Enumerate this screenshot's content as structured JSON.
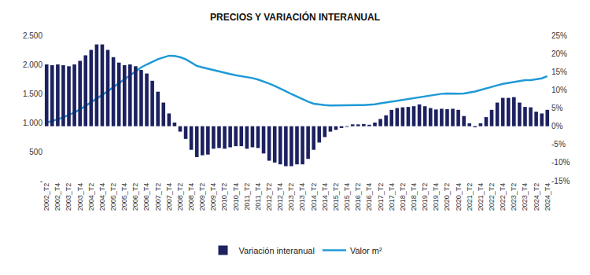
{
  "chart_data": {
    "type": "bar",
    "title": "PRECIOS Y VARIACIÓN INTERANUAL",
    "categories": [
      "2002_T2",
      null,
      "2002_T4",
      null,
      "2003_T2",
      null,
      "2003_T4",
      null,
      "2004_T2",
      null,
      "2004_T4",
      null,
      "2005_T2",
      null,
      "2005_T4",
      null,
      "2006_T2",
      null,
      "2006_T4",
      null,
      "2007_T2",
      null,
      "2007_T4",
      null,
      "2008_T2",
      null,
      "2008_T4",
      null,
      "2009_T2",
      null,
      "2009_T4",
      null,
      "2010_T2",
      null,
      "2010_T4",
      null,
      "2011_T2",
      null,
      "2011_T4",
      null,
      "2012_T2",
      null,
      "2012_T4",
      null,
      "2013_T2",
      null,
      "2013_T4",
      null,
      "2014_T2",
      null,
      "2014_T4",
      null,
      "2015_T2",
      null,
      "2015_T4",
      null,
      "2016_T2",
      null,
      "2016_T4",
      null,
      "2017_T2",
      null,
      "2017_T4",
      null,
      "2018_T2",
      null,
      "2018_T4",
      null,
      "2019_T2",
      null,
      "2019_T4",
      null,
      "2020_T2",
      null,
      "2020_T4",
      null,
      "2021_T2",
      null,
      "2021_T4",
      null,
      "2022_T2",
      null,
      "2022_T4",
      null,
      "2023_T2",
      null,
      "2023_T4",
      null,
      "2024_T2",
      null,
      "2024_T4"
    ],
    "series": [
      {
        "name": "Variación interanual",
        "type": "bar",
        "color": "#1c2160",
        "axis": "y2",
        "values": [
          17.0,
          16.8,
          17.0,
          16.8,
          16.5,
          17.0,
          18.0,
          19.5,
          21.0,
          22.5,
          22.5,
          21.0,
          19.0,
          17.5,
          16.8,
          17.0,
          16.5,
          15.5,
          14.5,
          12.5,
          9.5,
          6.5,
          3.5,
          1.0,
          -1.5,
          -3.5,
          -6.5,
          -8.5,
          -8.0,
          -7.8,
          -6.2,
          -6.0,
          -6.2,
          -5.8,
          -5.5,
          -5.5,
          -6.2,
          -5.8,
          -6.0,
          -7.5,
          -9.5,
          -10.0,
          -10.5,
          -11.0,
          -11.0,
          -10.5,
          -10.5,
          -9.0,
          -6.5,
          -4.5,
          -3.0,
          -1.5,
          -1.0,
          -0.5,
          -0.2,
          0.5,
          0.5,
          0.6,
          0.4,
          1.0,
          2.0,
          3.0,
          4.5,
          5.0,
          5.2,
          5.3,
          5.5,
          6.0,
          5.5,
          5.0,
          4.6,
          4.8,
          4.7,
          4.8,
          4.5,
          2.8,
          0.8,
          -0.3,
          0.8,
          2.5,
          4.5,
          6.5,
          7.8,
          7.8,
          8.0,
          6.5,
          5.3,
          5.2,
          4.0,
          3.5,
          4.5
        ]
      },
      {
        "name": "Valor m²",
        "type": "line",
        "color": "#1f9ad6",
        "axis": "y",
        "values": [
          1000,
          1025,
          1055,
          1090,
          1130,
          1175,
          1225,
          1285,
          1345,
          1410,
          1475,
          1540,
          1610,
          1680,
          1750,
          1820,
          1890,
          1950,
          2000,
          2050,
          2090,
          2120,
          2150,
          2145,
          2125,
          2090,
          2030,
          1975,
          1950,
          1925,
          1900,
          1880,
          1855,
          1835,
          1815,
          1800,
          1785,
          1765,
          1740,
          1710,
          1670,
          1630,
          1590,
          1540,
          1490,
          1445,
          1400,
          1360,
          1325,
          1310,
          1300,
          1295,
          1298,
          1296,
          1298,
          1300,
          1302,
          1300,
          1305,
          1315,
          1330,
          1345,
          1360,
          1380,
          1400,
          1415,
          1430,
          1440,
          1455,
          1470,
          1485,
          1495,
          1500,
          1495,
          1495,
          1500,
          1515,
          1535,
          1560,
          1590,
          1620,
          1640,
          1665,
          1680,
          1695,
          1710,
          1730,
          1730,
          1740,
          1760,
          1800
        ]
      }
    ],
    "ylim": [
      0,
      2500
    ],
    "yticks": [
      {
        "value": 0,
        "label": "-"
      },
      500,
      {
        "value": 1000,
        "label": "1.000"
      },
      {
        "value": 1500,
        "label": "1.500"
      },
      {
        "value": 2000,
        "label": "2.000"
      },
      {
        "value": 2500,
        "label": "2.500"
      }
    ],
    "y2lim": [
      -15,
      25
    ],
    "y2ticks": [
      {
        "value": -15,
        "label": "-15%"
      },
      {
        "value": -10,
        "label": "-10%"
      },
      {
        "value": -5,
        "label": "-5%"
      },
      {
        "value": 0,
        "label": "0%"
      },
      {
        "value": 5,
        "label": "5%"
      },
      {
        "value": 10,
        "label": "10%"
      },
      {
        "value": 15,
        "label": "15%"
      },
      {
        "value": 20,
        "label": "20%"
      },
      {
        "value": 25,
        "label": "25%"
      }
    ],
    "grid": false,
    "legend": "bottom"
  }
}
